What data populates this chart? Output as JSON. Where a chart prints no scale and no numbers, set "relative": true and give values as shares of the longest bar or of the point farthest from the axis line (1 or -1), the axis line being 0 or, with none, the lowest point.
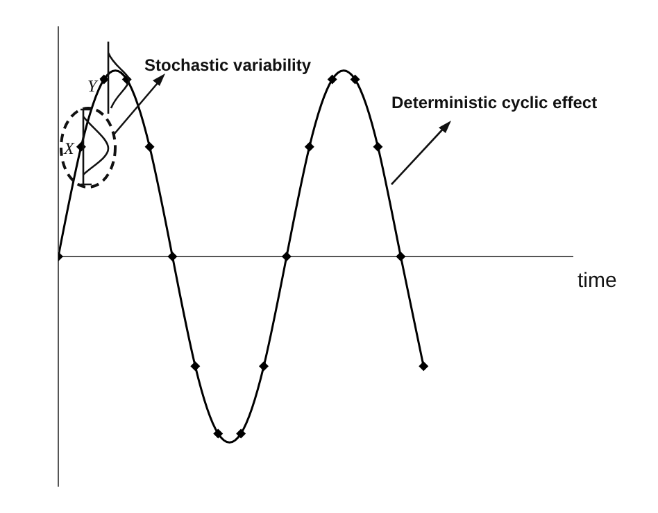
{
  "chart_data": {
    "type": "line",
    "relative": true,
    "marker": "diamond",
    "categories": [
      null,
      null,
      null,
      null,
      null,
      null,
      null,
      null,
      null,
      null,
      null,
      null,
      null,
      null,
      null,
      null,
      null
    ],
    "series": [
      {
        "color": "#000000",
        "values": [
          0,
          0.62,
          1,
          1,
          0.62,
          0,
          -0.62,
          -1,
          -1,
          -0.62,
          0,
          0.62,
          1,
          1,
          0.62,
          0,
          -0.62
        ]
      }
    ],
    "annotations": [
      "Stochastic variability",
      "Deterministic cyclic effect",
      "Y",
      "X",
      "time"
    ]
  }
}
